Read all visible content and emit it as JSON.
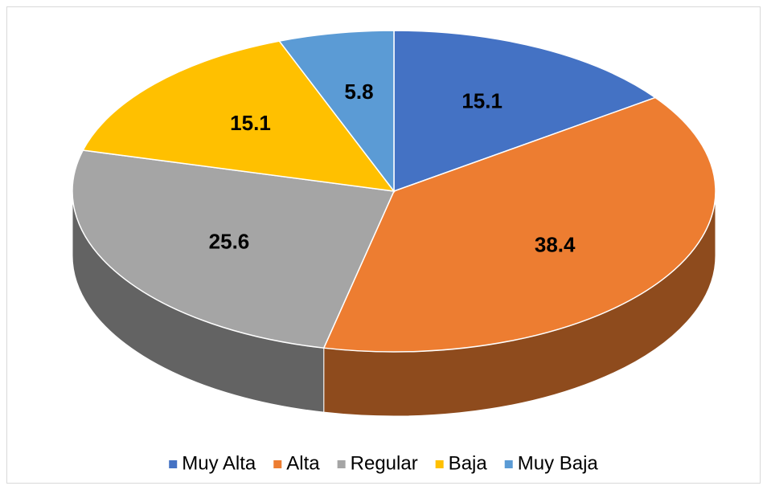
{
  "chart_data": {
    "type": "pie",
    "categories": [
      "Muy Alta",
      "Alta",
      "Regular",
      "Baja",
      "Muy Baja"
    ],
    "values": [
      15.1,
      38.4,
      25.6,
      15.1,
      5.8
    ],
    "colors": [
      "#4472c4",
      "#ed7d31",
      "#a5a5a5",
      "#ffc000",
      "#5b9bd5"
    ],
    "legend": "bottom"
  }
}
